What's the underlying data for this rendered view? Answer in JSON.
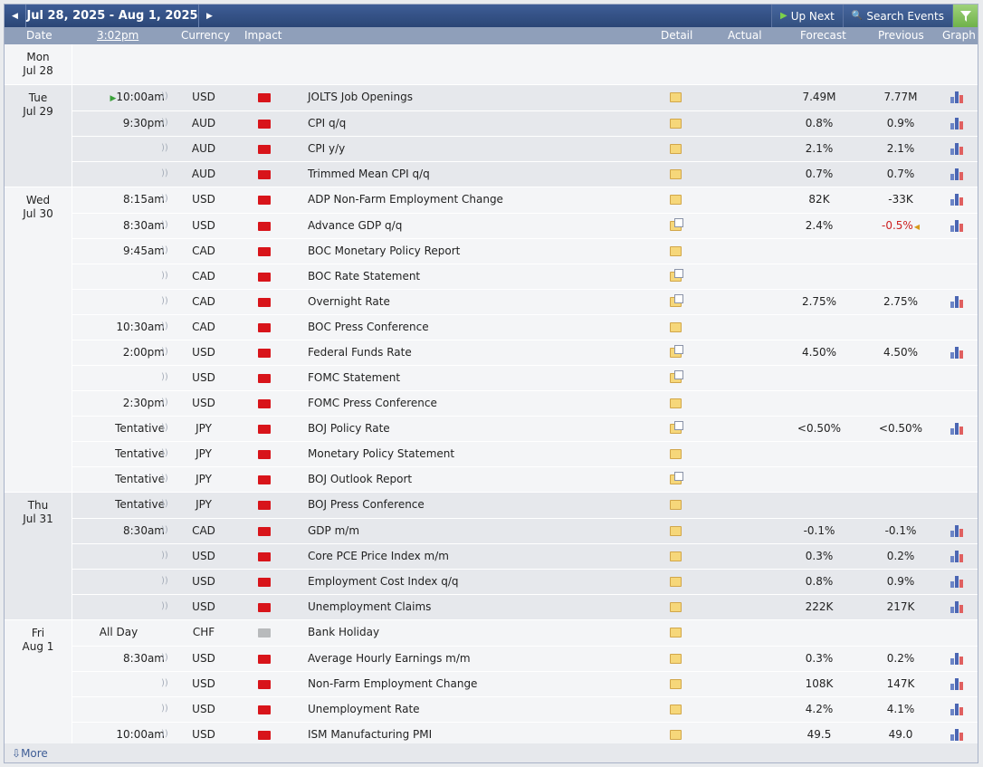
{
  "nav": {
    "prev_icon": "prev-arrow-icon",
    "next_icon": "next-arrow-icon",
    "date_range": "Jul 28, 2025 - Aug 1, 2025",
    "up_next": "Up Next",
    "search_events": "Search Events",
    "filter_icon": "filter-icon",
    "filter_color": "#7cbd55"
  },
  "header": {
    "date": "Date",
    "time": "3:02pm",
    "currency": "Currency",
    "impact": "Impact",
    "detail": "Detail",
    "actual": "Actual",
    "forecast": "Forecast",
    "previous": "Previous",
    "graph": "Graph"
  },
  "colors": {
    "high_impact": "#d8141a",
    "holiday": "#b8babc",
    "negative": "#cc1f1f",
    "header_bg": "#8f9fba",
    "nav_bg": "#2b4676"
  },
  "days": [
    {
      "dow": "Mon",
      "date": "Jul 28",
      "events": []
    },
    {
      "dow": "Tue",
      "date": "Jul 29",
      "events": [
        {
          "time": "10:00am",
          "up_next": true,
          "currency": "USD",
          "impact": "high",
          "name": "JOLTS Job Openings",
          "detail": "folder",
          "forecast": "7.49M",
          "previous": "7.77M",
          "graph": true
        },
        {
          "time": "9:30pm",
          "currency": "AUD",
          "impact": "high",
          "name": "CPI q/q",
          "detail": "folder",
          "forecast": "0.8%",
          "previous": "0.9%",
          "graph": true
        },
        {
          "time": "",
          "currency": "AUD",
          "impact": "high",
          "name": "CPI y/y",
          "detail": "folder",
          "forecast": "2.1%",
          "previous": "2.1%",
          "graph": true
        },
        {
          "time": "",
          "currency": "AUD",
          "impact": "high",
          "name": "Trimmed Mean CPI q/q",
          "detail": "folder",
          "forecast": "0.7%",
          "previous": "0.7%",
          "graph": true
        }
      ]
    },
    {
      "dow": "Wed",
      "date": "Jul 30",
      "events": [
        {
          "time": "8:15am",
          "currency": "USD",
          "impact": "high",
          "name": "ADP Non-Farm Employment Change",
          "detail": "folder",
          "forecast": "82K",
          "previous": "-33K",
          "graph": true
        },
        {
          "time": "8:30am",
          "currency": "USD",
          "impact": "high",
          "name": "Advance GDP q/q",
          "detail": "note",
          "forecast": "2.4%",
          "previous": "-0.5%",
          "previous_negative": true,
          "revised": true,
          "graph": true
        },
        {
          "time": "9:45am",
          "currency": "CAD",
          "impact": "high",
          "name": "BOC Monetary Policy Report",
          "detail": "folder",
          "forecast": "",
          "previous": "",
          "graph": false
        },
        {
          "time": "",
          "currency": "CAD",
          "impact": "high",
          "name": "BOC Rate Statement",
          "detail": "note",
          "forecast": "",
          "previous": "",
          "graph": false
        },
        {
          "time": "",
          "currency": "CAD",
          "impact": "high",
          "name": "Overnight Rate",
          "detail": "note",
          "forecast": "2.75%",
          "previous": "2.75%",
          "graph": true
        },
        {
          "time": "10:30am",
          "currency": "CAD",
          "impact": "high",
          "name": "BOC Press Conference",
          "detail": "folder",
          "forecast": "",
          "previous": "",
          "graph": false
        },
        {
          "time": "2:00pm",
          "currency": "USD",
          "impact": "high",
          "name": "Federal Funds Rate",
          "detail": "note",
          "forecast": "4.50%",
          "previous": "4.50%",
          "graph": true
        },
        {
          "time": "",
          "currency": "USD",
          "impact": "high",
          "name": "FOMC Statement",
          "detail": "note",
          "forecast": "",
          "previous": "",
          "graph": false
        },
        {
          "time": "2:30pm",
          "currency": "USD",
          "impact": "high",
          "name": "FOMC Press Conference",
          "detail": "folder",
          "forecast": "",
          "previous": "",
          "graph": false
        },
        {
          "time": "Tentative",
          "currency": "JPY",
          "impact": "high",
          "name": "BOJ Policy Rate",
          "detail": "note",
          "forecast": "<0.50%",
          "previous": "<0.50%",
          "graph": true
        },
        {
          "time": "Tentative",
          "currency": "JPY",
          "impact": "high",
          "name": "Monetary Policy Statement",
          "detail": "folder",
          "forecast": "",
          "previous": "",
          "graph": false
        },
        {
          "time": "Tentative",
          "currency": "JPY",
          "impact": "high",
          "name": "BOJ Outlook Report",
          "detail": "note",
          "forecast": "",
          "previous": "",
          "graph": false
        }
      ]
    },
    {
      "dow": "Thu",
      "date": "Jul 31",
      "events": [
        {
          "time": "Tentative",
          "currency": "JPY",
          "impact": "high",
          "name": "BOJ Press Conference",
          "detail": "folder",
          "forecast": "",
          "previous": "",
          "graph": false
        },
        {
          "time": "8:30am",
          "currency": "CAD",
          "impact": "high",
          "name": "GDP m/m",
          "detail": "folder",
          "forecast": "-0.1%",
          "previous": "-0.1%",
          "graph": true
        },
        {
          "time": "",
          "currency": "USD",
          "impact": "high",
          "name": "Core PCE Price Index m/m",
          "detail": "folder",
          "forecast": "0.3%",
          "previous": "0.2%",
          "graph": true
        },
        {
          "time": "",
          "currency": "USD",
          "impact": "high",
          "name": "Employment Cost Index q/q",
          "detail": "folder",
          "forecast": "0.8%",
          "previous": "0.9%",
          "graph": true
        },
        {
          "time": "",
          "currency": "USD",
          "impact": "high",
          "name": "Unemployment Claims",
          "detail": "folder",
          "forecast": "222K",
          "previous": "217K",
          "graph": true
        }
      ]
    },
    {
      "dow": "Fri",
      "date": "Aug 1",
      "events": [
        {
          "time": "All Day",
          "all_day": true,
          "currency": "CHF",
          "impact": "holiday",
          "name": "Bank Holiday",
          "detail": "folder",
          "forecast": "",
          "previous": "",
          "graph": false
        },
        {
          "time": "8:30am",
          "currency": "USD",
          "impact": "high",
          "name": "Average Hourly Earnings m/m",
          "detail": "folder",
          "forecast": "0.3%",
          "previous": "0.2%",
          "graph": true
        },
        {
          "time": "",
          "currency": "USD",
          "impact": "high",
          "name": "Non-Farm Employment Change",
          "detail": "folder",
          "forecast": "108K",
          "previous": "147K",
          "graph": true
        },
        {
          "time": "",
          "currency": "USD",
          "impact": "high",
          "name": "Unemployment Rate",
          "detail": "folder",
          "forecast": "4.2%",
          "previous": "4.1%",
          "graph": true
        },
        {
          "time": "10:00am",
          "currency": "USD",
          "impact": "high",
          "name": "ISM Manufacturing PMI",
          "detail": "folder",
          "forecast": "49.5",
          "previous": "49.0",
          "graph": true
        }
      ]
    }
  ],
  "more_label": "More"
}
